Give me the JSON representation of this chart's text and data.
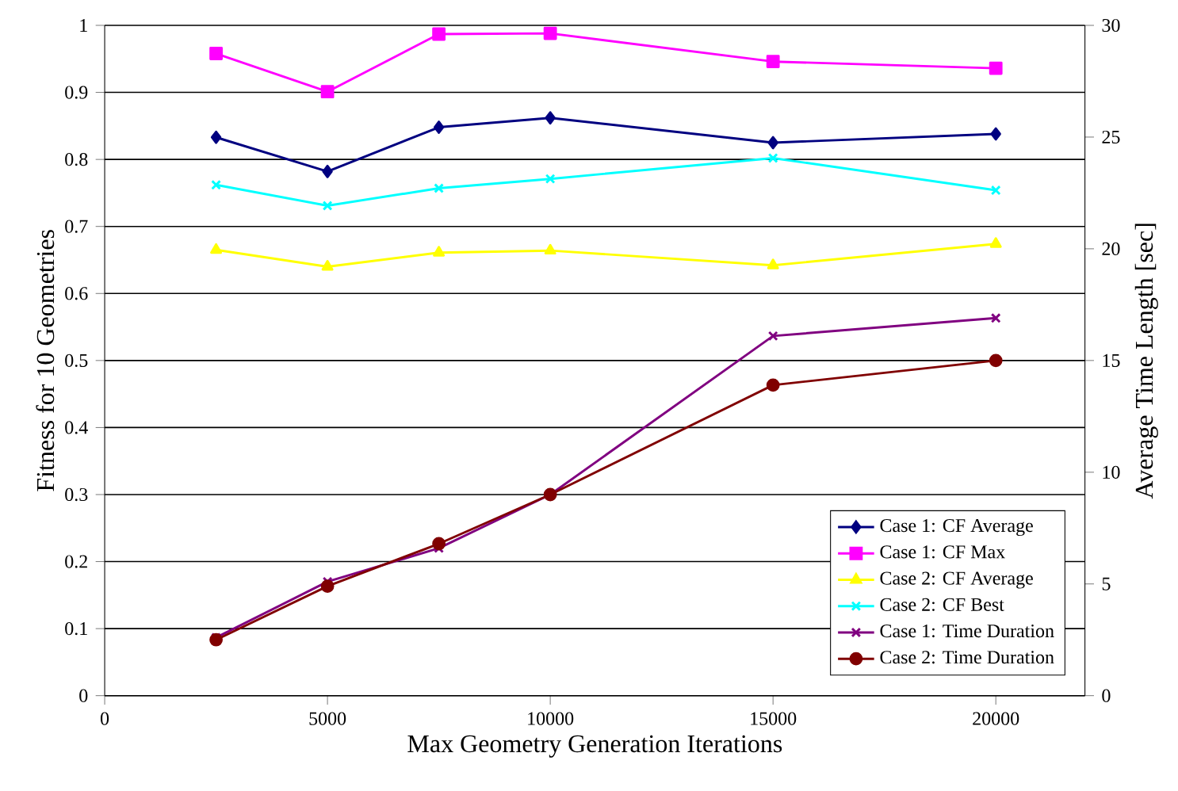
{
  "chart_data": {
    "type": "line",
    "xlabel": "Max Geometry Generation Iterations",
    "ylabel": "Fitness for 10 Geometries",
    "y2label": "Average Time Length [sec]",
    "x": [
      2500,
      5000,
      7500,
      10000,
      15000,
      20000
    ],
    "xlim": [
      0,
      22000
    ],
    "xticks": [
      0,
      5000,
      10000,
      15000,
      20000
    ],
    "ylim": [
      0,
      1
    ],
    "yticks": [
      0,
      0.1,
      0.2,
      0.3,
      0.4,
      0.5,
      0.6,
      0.7,
      0.8,
      0.9,
      1
    ],
    "y2lim": [
      0,
      30
    ],
    "y2ticks": [
      0,
      5,
      10,
      15,
      20,
      25,
      30
    ],
    "grid": "y",
    "legend": "bottom right",
    "line_style": "solid",
    "series": [
      {
        "name": "Case 1: CF Average",
        "color": "#000080",
        "marker": "diamond",
        "values": [
          0.833,
          0.782,
          0.848,
          0.862,
          0.825,
          0.838
        ]
      },
      {
        "name": "Case 1: CF Max",
        "color": "#ff00ff",
        "marker": "square",
        "values": [
          0.958,
          0.901,
          0.987,
          0.988,
          0.946,
          0.936
        ]
      },
      {
        "name": "Case 2: CF Average",
        "color": "#ffff00",
        "marker": "triangle",
        "values": [
          0.665,
          0.64,
          0.661,
          0.664,
          0.642,
          0.674
        ]
      },
      {
        "name": "Case 2: CF Best",
        "color": "#00ffff",
        "marker": "cross",
        "values": [
          0.762,
          0.731,
          0.757,
          0.771,
          0.802,
          0.754
        ]
      },
      {
        "name": "Case 1: Time Duration",
        "color": "#800080",
        "marker": "cross",
        "axis": "y2",
        "values": [
          2.6,
          5.1,
          6.6,
          9.0,
          16.1,
          16.9
        ]
      },
      {
        "name": "Case 2: Time Duration",
        "color": "#800000",
        "marker": "circle",
        "axis": "y2",
        "values": [
          2.5,
          4.9,
          6.8,
          9.0,
          13.9,
          15.0
        ]
      }
    ]
  }
}
